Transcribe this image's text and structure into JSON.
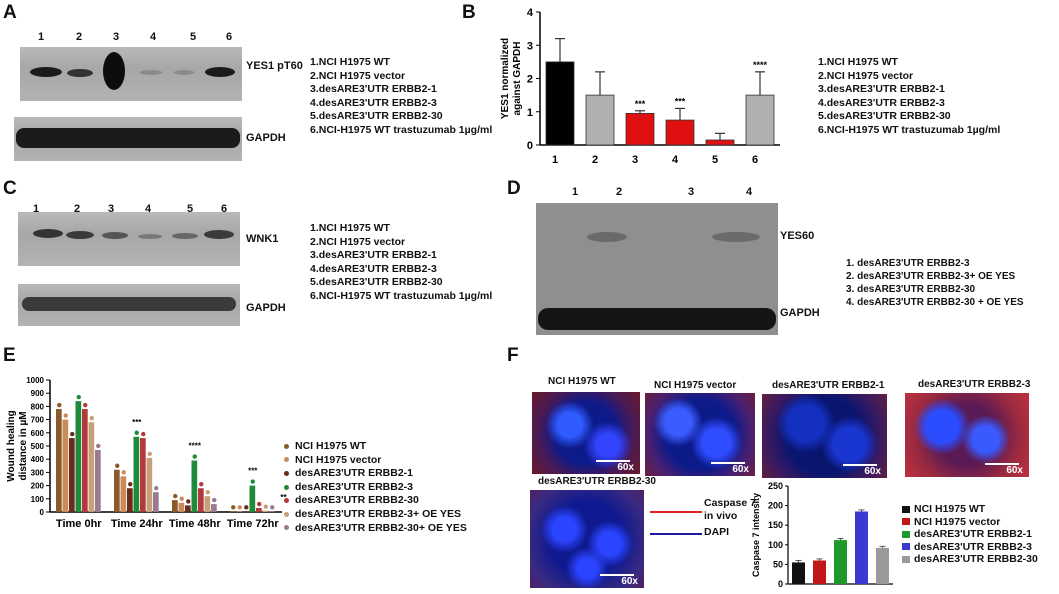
{
  "panels": {
    "A": {
      "label": "A",
      "lanes": [
        "1",
        "2",
        "3",
        "4",
        "5",
        "6"
      ],
      "band_top": "YES1 pT60",
      "band_bottom": "GAPDH",
      "legend": [
        "1.NCI H1975 WT",
        "2.NCI H1975 vector",
        "3.desARE3'UTR ERBB2-1",
        "4.desARE3'UTR ERBB2-3",
        "5.desARE3'UTR ERBB2-30",
        "6.NCI-H1975 WT trastuzumab 1µg/ml"
      ]
    },
    "B": {
      "label": "B",
      "legend": [
        "1.NCI H1975 WT",
        "2.NCI H1975  vector",
        "3.desARE3'UTR ERBB2-1",
        "4.desARE3'UTR ERBB2-3",
        "5.desARE3'UTR ERBB2-30",
        "6.NCI-H1975 WT trastuzumab 1µg/ml"
      ]
    },
    "C": {
      "label": "C",
      "lanes": [
        "1",
        "2",
        "3",
        "4",
        "5",
        "6"
      ],
      "band_top": "WNK1",
      "band_bottom": "GAPDH",
      "legend": [
        "1.NCI H1975 WT",
        "2.NCI H1975  vector",
        "3.desARE3'UTR ERBB2-1",
        "4.desARE3'UTR ERBB2-3",
        "5.desARE3'UTR ERBB2-30",
        "6.NCI-H1975 WT trastuzumab 1µg/ml"
      ]
    },
    "D": {
      "label": "D",
      "lanes": [
        "1",
        "2",
        "3",
        "4"
      ],
      "band_top": "YES60",
      "band_bottom": "GAPDH",
      "legend": [
        "1.  desARE3'UTR ERBB2-3",
        "2.  desARE3'UTR ERBB2-3+ OE YES",
        "3.  desARE3'UTR ERBB2-30",
        "4.  desARE3'UTR ERBB2-30 + OE YES"
      ]
    },
    "E": {
      "label": "E",
      "legend": [
        "NCI H1975 WT",
        "NCI H1975  vector",
        "desARE3'UTR ERBB2-1",
        "desARE3'UTR ERBB2-3",
        "desARE3'UTR ERBB2-30",
        "desARE3'UTR ERBB2-3+ OE YES",
        "desARE3'UTR ERBB2-30+ OE YES"
      ]
    },
    "F": {
      "label": "F",
      "images": [
        {
          "title": "NCI H1975 WT",
          "mag": "60x"
        },
        {
          "title": "NCI H1975  vector",
          "mag": "60x"
        },
        {
          "title": "desARE3'UTR ERBB2-1",
          "mag": "60x"
        },
        {
          "title": "desARE3'UTR ERBB2-3",
          "mag": "60x"
        },
        {
          "title": "desARE3'UTR ERBB2-30",
          "mag": "60x"
        }
      ],
      "stain_legend": [
        {
          "label": "Caspase 7\nin vivo",
          "color": "#e02020"
        },
        {
          "label": "DAPI",
          "color": "#1a1aa0"
        }
      ],
      "legend": [
        "NCI H1975 WT",
        "NCI H1975  vector",
        "desARE3'UTR ERBB2-1",
        "desARE3'UTR ERBB2-3",
        "desARE3'UTR ERBB2-30"
      ]
    }
  },
  "chart_data": [
    {
      "panel": "B",
      "type": "bar",
      "categories": [
        "1",
        "2",
        "3",
        "4",
        "5",
        "6"
      ],
      "values": [
        2.5,
        1.5,
        0.95,
        0.75,
        0.15,
        1.5
      ],
      "errors": [
        0.7,
        0.7,
        0.08,
        0.35,
        0.2,
        0.7
      ],
      "significance": [
        "",
        "",
        "***",
        "***",
        "",
        "****"
      ],
      "colors": [
        "#000000",
        "#b0b0b0",
        "#e01010",
        "#e01010",
        "#e01010",
        "#b0b0b0"
      ],
      "ylabel": "YES1  normalized\nagainst GAPDH",
      "ylim": [
        0,
        4
      ],
      "yticks": [
        0,
        1,
        2,
        3,
        4
      ]
    },
    {
      "panel": "E",
      "type": "bar",
      "categories": [
        "Time   0hr",
        "Time  24hr",
        "Time   48hr",
        "Time   72hr"
      ],
      "series": [
        {
          "name": "NCI H1975 WT",
          "color": "#8b5a2b",
          "values": [
            780,
            320,
            90,
            5
          ]
        },
        {
          "name": "NCI H1975  vector",
          "color": "#c98b5a",
          "values": [
            700,
            270,
            70,
            5
          ]
        },
        {
          "name": "desARE3'UTR ERBB2-1",
          "color": "#6b2a1a",
          "values": [
            560,
            180,
            50,
            5
          ]
        },
        {
          "name": "desARE3'UTR ERBB2-3",
          "color": "#1f8b3a",
          "values": [
            840,
            570,
            390,
            200
          ]
        },
        {
          "name": "desARE3'UTR ERBB2-30",
          "color": "#b23a3a",
          "values": [
            780,
            560,
            180,
            30
          ]
        },
        {
          "name": "desARE3'UTR ERBB2-3+ OE YES",
          "color": "#c7a07a",
          "values": [
            680,
            410,
            120,
            10
          ]
        },
        {
          "name": "desARE3'UTR ERBB2-30+ OE YES",
          "color": "#9a7a90",
          "values": [
            470,
            150,
            60,
            5
          ]
        }
      ],
      "significance": [
        "",
        "***",
        "****",
        "***"
      ],
      "significance_extra": [
        "",
        "",
        "",
        "**"
      ],
      "ylabel": "Wound healing\ndistance in µM",
      "ylim": [
        0,
        1000
      ],
      "yticks": [
        0,
        100,
        200,
        300,
        400,
        500,
        600,
        700,
        800,
        900,
        1000
      ]
    },
    {
      "panel": "F",
      "type": "bar",
      "categories": [
        "NCI H1975 WT",
        "NCI H1975  vector",
        "desARE3'UTR ERBB2-1",
        "desARE3'UTR ERBB2-3",
        "desARE3'UTR ERBB2-30"
      ],
      "values": [
        55,
        60,
        112,
        185,
        92
      ],
      "errors": [
        5,
        4,
        4,
        4,
        4
      ],
      "colors": [
        "#111111",
        "#c01818",
        "#1f9a2a",
        "#3a3ad0",
        "#9a9a9a"
      ],
      "ylabel": "Caspase 7 intensity",
      "ylim": [
        0,
        250
      ],
      "yticks": [
        0,
        50,
        100,
        150,
        200,
        250
      ]
    }
  ]
}
